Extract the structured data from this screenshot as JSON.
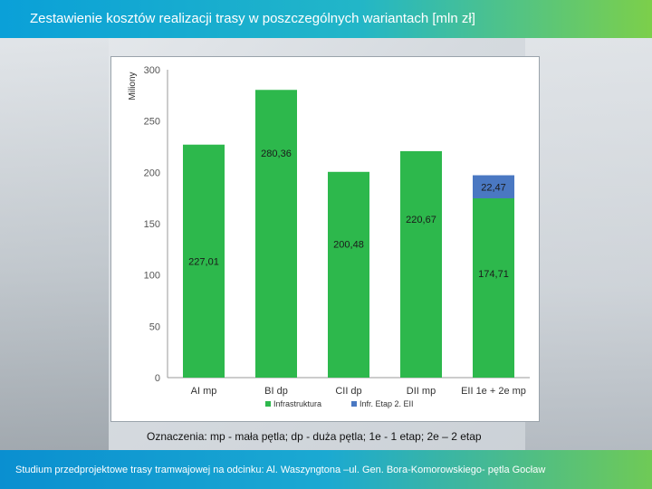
{
  "header": {
    "title": "Zestawienie kosztów realizacji trasy w poszczególnych wariantach  [mln zł]"
  },
  "notes": "Oznaczenia: mp - mała pętla; dp - duża pętla; 1e -  1 etap; 2e – 2 etap",
  "footer": {
    "text": "Studium przedprojektowe trasy tramwajowej na odcinku: Al. Waszyngtona –ul. Gen. Bora-Komorowskiego- pętla Gocław"
  },
  "colors": {
    "infra": "#2db84c",
    "infra_etap2": "#4a78c2",
    "accent": "#17a6d6"
  },
  "chart_data": {
    "type": "bar",
    "stacked": true,
    "categories": [
      "AI mp",
      "BI dp",
      "CII dp",
      "DII mp",
      "EII 1e + 2e mp"
    ],
    "series": [
      {
        "name": "Infrastruktura",
        "color": "#2db84c",
        "values": [
          227.01,
          280.36,
          200.48,
          220.67,
          174.71
        ]
      },
      {
        "name": "Infr. Etap 2. EII",
        "color": "#4a78c2",
        "values": [
          0,
          0,
          0,
          0,
          22.47
        ]
      }
    ],
    "data_labels": [
      [
        "227,01",
        "280,36",
        "200,48",
        "220,67",
        "174,71"
      ],
      [
        "",
        "",
        "",
        "",
        "22,47"
      ]
    ],
    "ylabel": "Miliony",
    "ylim": [
      0,
      300
    ],
    "yticks": [
      0,
      50,
      100,
      150,
      200,
      250,
      300
    ],
    "ytick_labels": [
      "0",
      "50",
      "100",
      "150",
      "200",
      "250",
      "300"
    ],
    "grid": false,
    "legend_position": "bottom"
  }
}
